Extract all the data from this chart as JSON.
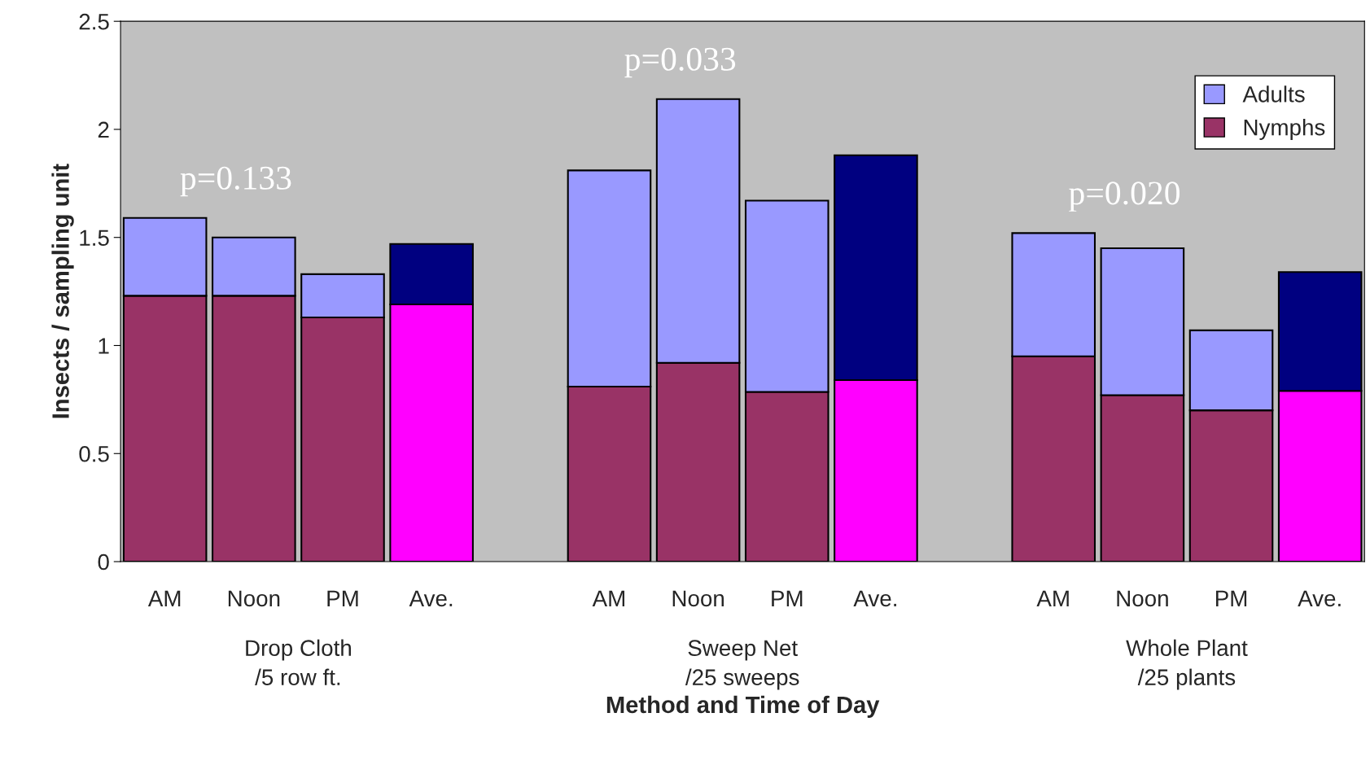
{
  "chart_data": {
    "type": "bar",
    "stacked": true,
    "xlabel": "Method and Time of Day",
    "ylabel": "Insects / sampling unit",
    "categories": [
      "AM",
      "Noon",
      "PM",
      "Ave.",
      null,
      "AM",
      "Noon",
      "PM",
      "Ave.",
      null,
      "AM",
      "Noon",
      "PM",
      "Ave."
    ],
    "series": [
      {
        "name": "Nymphs",
        "color": "#993366",
        "colors": [
          "#993366",
          "#993366",
          "#993366",
          "#ff00ff",
          null,
          "#993366",
          "#993366",
          "#993366",
          "#ff00ff",
          null,
          "#993366",
          "#993366",
          "#993366",
          "#ff00ff"
        ],
        "values": [
          1.23,
          1.23,
          1.13,
          1.19,
          null,
          0.81,
          0.92,
          0.785,
          0.84,
          null,
          0.95,
          0.77,
          0.7,
          0.79
        ]
      },
      {
        "name": "Adults",
        "color": "#9999ff",
        "colors": [
          "#9999ff",
          "#9999ff",
          "#9999ff",
          "#000080",
          null,
          "#9999ff",
          "#9999ff",
          "#9999ff",
          "#000080",
          null,
          "#9999ff",
          "#9999ff",
          "#9999ff",
          "#000080"
        ],
        "values": [
          0.36,
          0.27,
          0.2,
          0.28,
          null,
          1.0,
          1.22,
          0.885,
          1.04,
          null,
          0.57,
          0.68,
          0.37,
          0.55
        ]
      }
    ],
    "ylim": [
      0,
      2.5
    ],
    "yticks": [
      0,
      0.5,
      1,
      1.5,
      2,
      2.5
    ],
    "grid": false,
    "legend": "top right",
    "annotations": [
      "p=0.133",
      "p=0.033",
      "p=0.020",
      "Drop Cloth\n/5 row ft.",
      "Sweep Net\n/25 sweeps",
      "Whole Plant\n/25 plants"
    ]
  }
}
